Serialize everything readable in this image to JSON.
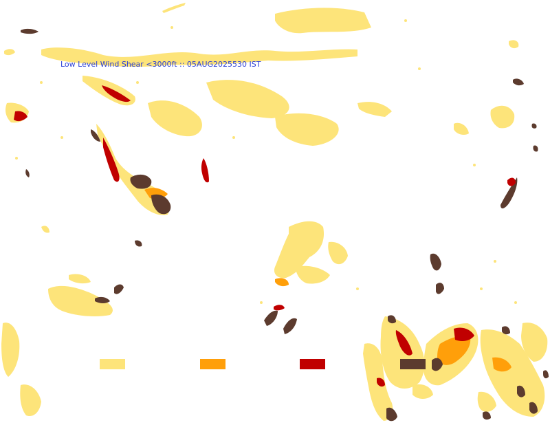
{
  "map": {
    "title": "Low Level Wind Shear <3000ft :: 05AUG2025530 IST",
    "colors": {
      "title": "#2a3fd6",
      "background": "#ffffff"
    },
    "legend": {
      "levels": [
        {
          "color": "#fde47a"
        },
        {
          "color": "#ff9f0a"
        },
        {
          "color": "#c00000"
        },
        {
          "color": "#5c3b2e"
        }
      ]
    }
  }
}
